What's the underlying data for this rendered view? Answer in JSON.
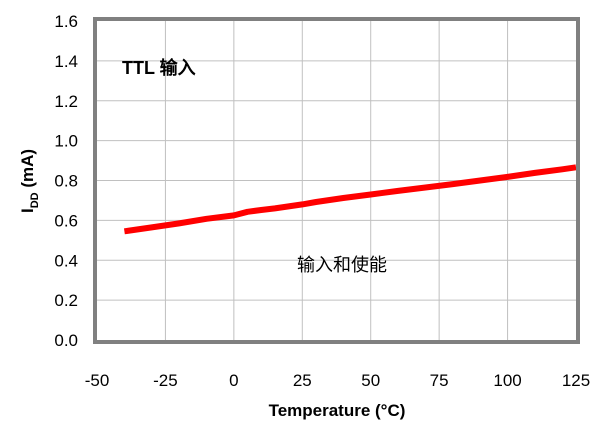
{
  "chart_data": {
    "type": "line",
    "xlabel": "Temperature (°C)",
    "ylabel_main": "I",
    "ylabel_sub": "DD",
    "ylabel_unit": " (mA)",
    "xlim": [
      -50,
      125
    ],
    "ylim": [
      0,
      1.6
    ],
    "x_ticks": [
      -50,
      -25,
      0,
      25,
      50,
      75,
      100,
      125
    ],
    "y_ticks": [
      "0.0",
      "0.2",
      "0.4",
      "0.6",
      "0.8",
      "1.0",
      "1.2",
      "1.4",
      "1.6"
    ],
    "grid": true,
    "annotations": {
      "top_left": "TTL 输入",
      "center": "输入和使能"
    },
    "colors": {
      "line": "#ff0000",
      "frame": "#808080",
      "grid": "#c0c0c0"
    },
    "series": [
      {
        "x": [
          -40,
          -30,
          -20,
          -10,
          0,
          5,
          10,
          15,
          20,
          25,
          30,
          40,
          50,
          60,
          70,
          80,
          90,
          100,
          110,
          120,
          125
        ],
        "y": [
          0.545,
          0.565,
          0.585,
          0.608,
          0.625,
          0.643,
          0.652,
          0.66,
          0.67,
          0.68,
          0.692,
          0.712,
          0.73,
          0.748,
          0.765,
          0.782,
          0.8,
          0.818,
          0.838,
          0.856,
          0.866
        ]
      }
    ]
  }
}
